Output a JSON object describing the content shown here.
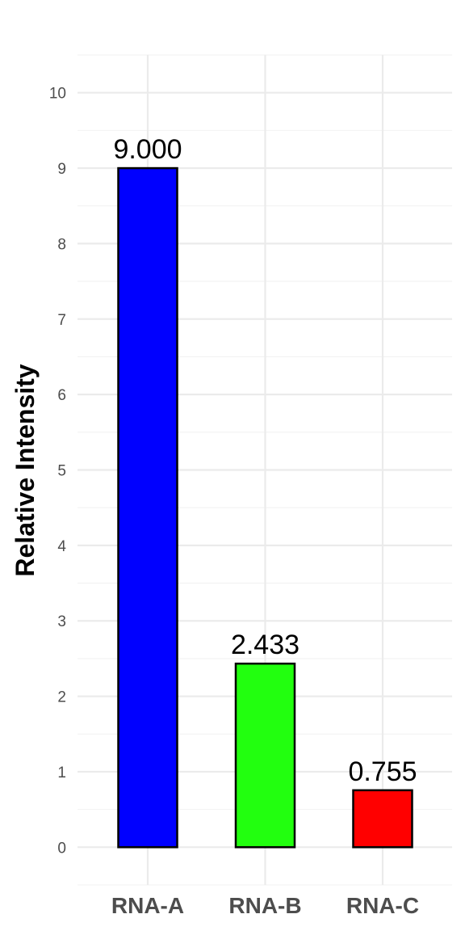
{
  "chart_data": {
    "type": "bar",
    "title": "",
    "xlabel": "",
    "ylabel": "Relative Intensity",
    "categories": [
      "RNA-A",
      "RNA-B",
      "RNA-C"
    ],
    "values": [
      9.0,
      2.433,
      0.755
    ],
    "data_labels": [
      "9.000",
      "2.433",
      "0.755"
    ],
    "colors": [
      "#0000ff",
      "#22ff0f",
      "#ff0000"
    ],
    "ylim": [
      -0.5,
      10.5
    ],
    "yticks": [
      0,
      1,
      2,
      3,
      4,
      5,
      6,
      7,
      8,
      9,
      10
    ],
    "grid": true,
    "legend": "none"
  }
}
